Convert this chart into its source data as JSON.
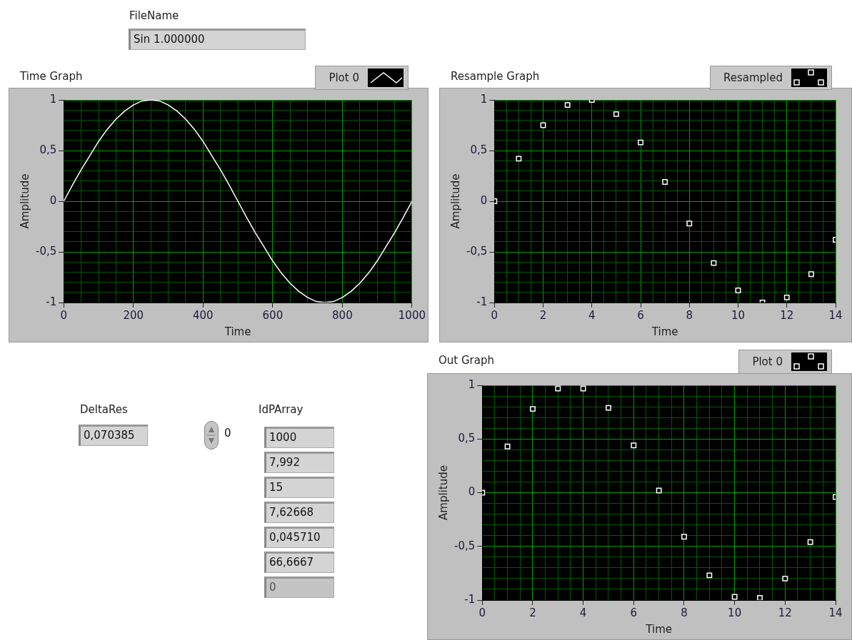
{
  "chart_data": [
    {
      "type": "line",
      "title": "Time Graph",
      "xlabel": "Time",
      "ylabel": "Amplitude",
      "legend": "top right",
      "grid": true,
      "marker": "none",
      "xlim": [
        0,
        1000
      ],
      "xticks": [
        0,
        {
          "value": 50,
          "label": null
        },
        {
          "value": 100,
          "label": null
        },
        {
          "value": 150,
          "label": null
        },
        200,
        {
          "value": 250,
          "label": null
        },
        {
          "value": 300,
          "label": null
        },
        {
          "value": 350,
          "label": null
        },
        400,
        {
          "value": 450,
          "label": null
        },
        {
          "value": 500,
          "label": null
        },
        {
          "value": 550,
          "label": null
        },
        600,
        {
          "value": 650,
          "label": null
        },
        {
          "value": 700,
          "label": null
        },
        {
          "value": 750,
          "label": null
        },
        800,
        {
          "value": 850,
          "label": null
        },
        {
          "value": 900,
          "label": null
        },
        {
          "value": 950,
          "label": null
        },
        1000
      ],
      "ylim": [
        -1,
        1
      ],
      "yticks": [
        -1,
        {
          "value": -0.9,
          "label": null
        },
        {
          "value": -0.8,
          "label": null
        },
        {
          "value": -0.7,
          "label": null
        },
        {
          "value": -0.6,
          "label": null
        },
        {
          "value": -0.5,
          "label": "-0,5"
        },
        {
          "value": -0.4,
          "label": null
        },
        {
          "value": -0.3,
          "label": null
        },
        {
          "value": -0.2,
          "label": null
        },
        {
          "value": -0.1,
          "label": null
        },
        0,
        {
          "value": 0.1,
          "label": null
        },
        {
          "value": 0.2,
          "label": null
        },
        {
          "value": 0.3,
          "label": null
        },
        {
          "value": 0.4,
          "label": null
        },
        {
          "value": 0.5,
          "label": "0,5"
        },
        {
          "value": 0.6,
          "label": null
        },
        {
          "value": 0.7,
          "label": null
        },
        {
          "value": 0.8,
          "label": null
        },
        {
          "value": 0.9,
          "label": null
        },
        1
      ],
      "series": [
        {
          "name": "Plot 0",
          "color": "#ffffff",
          "x": [
            0,
            25,
            50,
            75,
            100,
            125,
            150,
            175,
            200,
            225,
            250,
            275,
            300,
            325,
            350,
            375,
            400,
            425,
            450,
            475,
            500,
            525,
            550,
            575,
            600,
            625,
            650,
            675,
            700,
            725,
            750,
            775,
            800,
            825,
            850,
            875,
            900,
            925,
            950,
            975,
            1000
          ],
          "values": [
            0,
            0.16,
            0.31,
            0.45,
            0.59,
            0.71,
            0.81,
            0.89,
            0.95,
            0.99,
            1,
            0.99,
            0.95,
            0.89,
            0.81,
            0.71,
            0.59,
            0.45,
            0.31,
            0.16,
            0,
            -0.16,
            -0.31,
            -0.45,
            -0.59,
            -0.71,
            -0.81,
            -0.89,
            -0.95,
            -0.99,
            -1,
            -0.99,
            -0.95,
            -0.89,
            -0.81,
            -0.71,
            -0.59,
            -0.45,
            -0.31,
            -0.16,
            0
          ]
        }
      ]
    },
    {
      "type": "scatter",
      "title": "Resample Graph",
      "xlabel": "Time",
      "ylabel": "Amplitude",
      "legend": "top right",
      "grid": true,
      "marker": "square",
      "xlim": [
        0,
        14
      ],
      "xticks": [
        0,
        {
          "value": 0.5,
          "label": null
        },
        {
          "value": 1,
          "label": null
        },
        {
          "value": 1.5,
          "label": null
        },
        2,
        {
          "value": 2.5,
          "label": null
        },
        {
          "value": 3,
          "label": null
        },
        {
          "value": 3.5,
          "label": null
        },
        4,
        {
          "value": 4.5,
          "label": null
        },
        {
          "value": 5,
          "label": null
        },
        {
          "value": 5.5,
          "label": null
        },
        6,
        {
          "value": 6.5,
          "label": null
        },
        {
          "value": 7,
          "label": null
        },
        {
          "value": 7.5,
          "label": null
        },
        8,
        {
          "value": 8.5,
          "label": null
        },
        {
          "value": 9,
          "label": null
        },
        {
          "value": 9.5,
          "label": null
        },
        10,
        {
          "value": 10.5,
          "label": null
        },
        {
          "value": 11,
          "label": null
        },
        {
          "value": 11.5,
          "label": null
        },
        12,
        {
          "value": 12.5,
          "label": null
        },
        {
          "value": 13,
          "label": null
        },
        {
          "value": 13.5,
          "label": null
        },
        14
      ],
      "ylim": [
        -1,
        1
      ],
      "yticks": [
        -1,
        {
          "value": -0.9,
          "label": null
        },
        {
          "value": -0.8,
          "label": null
        },
        {
          "value": -0.7,
          "label": null
        },
        {
          "value": -0.6,
          "label": null
        },
        {
          "value": -0.5,
          "label": "-0,5"
        },
        {
          "value": -0.4,
          "label": null
        },
        {
          "value": -0.3,
          "label": null
        },
        {
          "value": -0.2,
          "label": null
        },
        {
          "value": -0.1,
          "label": null
        },
        0,
        {
          "value": 0.1,
          "label": null
        },
        {
          "value": 0.2,
          "label": null
        },
        {
          "value": 0.3,
          "label": null
        },
        {
          "value": 0.4,
          "label": null
        },
        {
          "value": 0.5,
          "label": "0,5"
        },
        {
          "value": 0.6,
          "label": null
        },
        {
          "value": 0.7,
          "label": null
        },
        {
          "value": 0.8,
          "label": null
        },
        {
          "value": 0.9,
          "label": null
        },
        1
      ],
      "series": [
        {
          "name": "Resampled",
          "color": "#ffffff",
          "x": [
            0,
            1,
            2,
            3,
            4,
            5,
            6,
            7,
            8,
            9,
            10,
            11,
            12,
            13,
            14
          ],
          "values": [
            0,
            0.42,
            0.75,
            0.95,
            1,
            0.86,
            0.58,
            0.19,
            -0.22,
            -0.61,
            -0.88,
            -1,
            -0.95,
            -0.72,
            -0.38
          ]
        }
      ]
    },
    {
      "type": "scatter",
      "title": "Out Graph",
      "xlabel": "Time",
      "ylabel": "Amplitude",
      "legend": "top right",
      "grid": true,
      "marker": "square",
      "xlim": [
        0,
        14
      ],
      "xticks": [
        0,
        {
          "value": 0.5,
          "label": null
        },
        {
          "value": 1,
          "label": null
        },
        {
          "value": 1.5,
          "label": null
        },
        2,
        {
          "value": 2.5,
          "label": null
        },
        {
          "value": 3,
          "label": null
        },
        {
          "value": 3.5,
          "label": null
        },
        4,
        {
          "value": 4.5,
          "label": null
        },
        {
          "value": 5,
          "label": null
        },
        {
          "value": 5.5,
          "label": null
        },
        6,
        {
          "value": 6.5,
          "label": null
        },
        {
          "value": 7,
          "label": null
        },
        {
          "value": 7.5,
          "label": null
        },
        8,
        {
          "value": 8.5,
          "label": null
        },
        {
          "value": 9,
          "label": null
        },
        {
          "value": 9.5,
          "label": null
        },
        10,
        {
          "value": 10.5,
          "label": null
        },
        {
          "value": 11,
          "label": null
        },
        {
          "value": 11.5,
          "label": null
        },
        12,
        {
          "value": 12.5,
          "label": null
        },
        {
          "value": 13,
          "label": null
        },
        {
          "value": 13.5,
          "label": null
        },
        14
      ],
      "ylim": [
        -1,
        1
      ],
      "yticks": [
        -1,
        {
          "value": -0.9,
          "label": null
        },
        {
          "value": -0.8,
          "label": null
        },
        {
          "value": -0.7,
          "label": null
        },
        {
          "value": -0.6,
          "label": null
        },
        {
          "value": -0.5,
          "label": "-0,5"
        },
        {
          "value": -0.4,
          "label": null
        },
        {
          "value": -0.3,
          "label": null
        },
        {
          "value": -0.2,
          "label": null
        },
        {
          "value": -0.1,
          "label": null
        },
        0,
        {
          "value": 0.1,
          "label": null
        },
        {
          "value": 0.2,
          "label": null
        },
        {
          "value": 0.3,
          "label": null
        },
        {
          "value": 0.4,
          "label": null
        },
        {
          "value": 0.5,
          "label": "0,5"
        },
        {
          "value": 0.6,
          "label": null
        },
        {
          "value": 0.7,
          "label": null
        },
        {
          "value": 0.8,
          "label": null
        },
        {
          "value": 0.9,
          "label": null
        },
        1
      ],
      "series": [
        {
          "name": "Plot 0",
          "color": "#ffffff",
          "x": [
            0,
            1,
            2,
            3,
            4,
            5,
            6,
            7,
            8,
            9,
            10,
            11,
            12,
            13,
            14
          ],
          "values": [
            0,
            0.43,
            0.78,
            0.97,
            0.97,
            0.79,
            0.44,
            0.02,
            -0.41,
            -0.77,
            -0.97,
            -0.98,
            -0.8,
            -0.46,
            -0.04
          ]
        }
      ]
    },
    {
      "type": "other",
      "annotations": [
        "FileName",
        "Sin 1.000000",
        "DeltaRes",
        "0,070385",
        "0",
        "IdPArray",
        "1000",
        "7,992",
        "15",
        "7,62668",
        "0,045710",
        "66,6667",
        "0"
      ]
    }
  ]
}
